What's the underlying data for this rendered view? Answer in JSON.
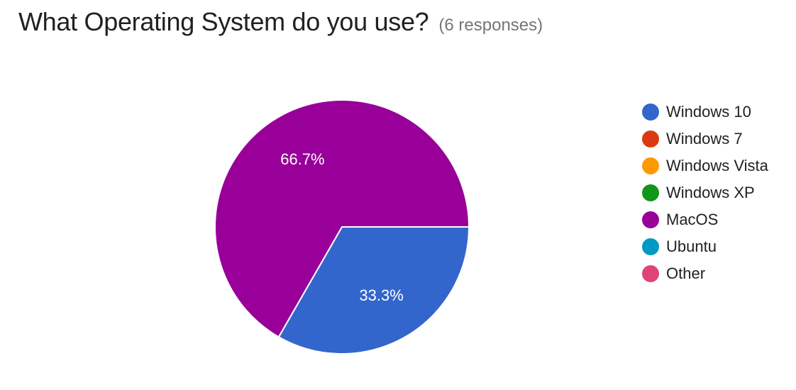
{
  "header": {
    "title": "What Operating System do you use?",
    "responses": "(6 responses)"
  },
  "chart_data": {
    "type": "pie",
    "title": "What Operating System do you use?",
    "subtitle": "(6 responses)",
    "legend_position": "right",
    "slices": [
      {
        "label": "Windows 10",
        "percent": 33.3,
        "value_label": "33.3%",
        "color": "#3366cc"
      },
      {
        "label": "Windows 7",
        "percent": 0,
        "value_label": "",
        "color": "#dc3912"
      },
      {
        "label": "Windows Vista",
        "percent": 0,
        "value_label": "",
        "color": "#ff9900"
      },
      {
        "label": "Windows XP",
        "percent": 0,
        "value_label": "",
        "color": "#109618"
      },
      {
        "label": "MacOS",
        "percent": 66.7,
        "value_label": "66.7%",
        "color": "#990099"
      },
      {
        "label": "Ubuntu",
        "percent": 0,
        "value_label": "",
        "color": "#0099c6"
      },
      {
        "label": "Other",
        "percent": 0,
        "value_label": "",
        "color": "#dd4477"
      }
    ]
  }
}
